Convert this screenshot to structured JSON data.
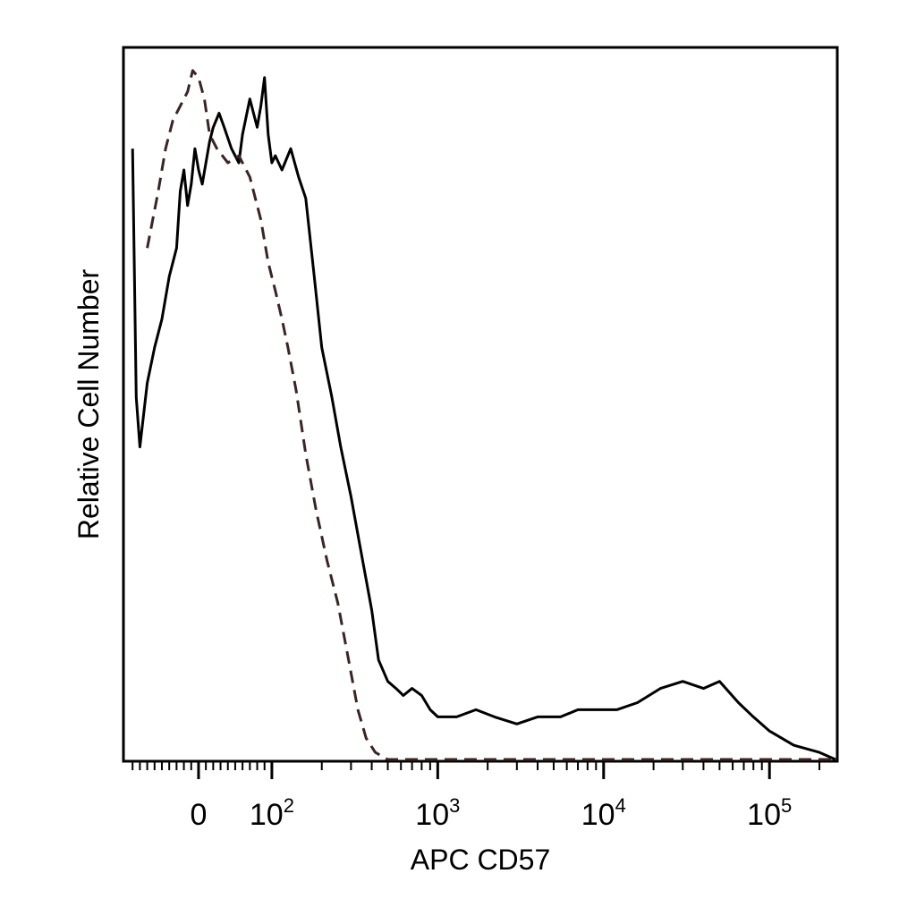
{
  "chart_data": {
    "type": "line",
    "title": "",
    "xlabel": "APC CD57",
    "ylabel": "Relative Cell Number",
    "x_scale": "biexponential (linear near 0, log above 10^2)",
    "xlim": [
      -100,
      250000
    ],
    "ylim": [
      0,
      100
    ],
    "x_ticks": [
      {
        "value": 0,
        "base": "0",
        "exp": ""
      },
      {
        "value": 100,
        "base": "10",
        "exp": "2"
      },
      {
        "value": 1000,
        "base": "10",
        "exp": "3"
      },
      {
        "value": 10000,
        "base": "10",
        "exp": "4"
      },
      {
        "value": 100000,
        "base": "10",
        "exp": "5"
      }
    ],
    "y_tick_labels": "none",
    "grid": false,
    "legend": "none",
    "series": [
      {
        "style": "solid",
        "color": "#000000",
        "points": [
          [
            -90,
            86
          ],
          [
            -85,
            51
          ],
          [
            -80,
            44
          ],
          [
            -70,
            53
          ],
          [
            -60,
            58
          ],
          [
            -50,
            62
          ],
          [
            -40,
            68
          ],
          [
            -30,
            72
          ],
          [
            -25,
            80
          ],
          [
            -20,
            83
          ],
          [
            -15,
            78
          ],
          [
            -10,
            81
          ],
          [
            -5,
            86
          ],
          [
            0,
            83
          ],
          [
            5,
            81
          ],
          [
            10,
            84
          ],
          [
            15,
            87
          ],
          [
            20,
            89
          ],
          [
            28,
            91
          ],
          [
            35,
            89
          ],
          [
            45,
            86
          ],
          [
            55,
            84
          ],
          [
            60,
            88
          ],
          [
            70,
            93
          ],
          [
            80,
            89
          ],
          [
            85,
            92
          ],
          [
            90,
            96
          ],
          [
            95,
            88
          ],
          [
            100,
            84
          ],
          [
            105,
            85
          ],
          [
            115,
            83
          ],
          [
            130,
            86
          ],
          [
            145,
            82
          ],
          [
            160,
            79
          ],
          [
            180,
            68
          ],
          [
            200,
            58
          ],
          [
            230,
            51
          ],
          [
            260,
            44
          ],
          [
            300,
            37
          ],
          [
            340,
            30
          ],
          [
            400,
            21
          ],
          [
            440,
            14
          ],
          [
            500,
            11
          ],
          [
            560,
            10
          ],
          [
            620,
            9
          ],
          [
            700,
            10
          ],
          [
            800,
            9
          ],
          [
            900,
            7
          ],
          [
            1000,
            6
          ],
          [
            1300,
            6
          ],
          [
            1700,
            7
          ],
          [
            2200,
            6
          ],
          [
            3000,
            5
          ],
          [
            4000,
            6
          ],
          [
            5500,
            6
          ],
          [
            7000,
            7
          ],
          [
            9000,
            7
          ],
          [
            12000,
            7
          ],
          [
            16000,
            8
          ],
          [
            22000,
            10
          ],
          [
            30000,
            11
          ],
          [
            40000,
            10
          ],
          [
            50000,
            11
          ],
          [
            65000,
            8
          ],
          [
            80000,
            6
          ],
          [
            100000,
            4
          ],
          [
            140000,
            2
          ],
          [
            200000,
            1
          ],
          [
            250000,
            0
          ]
        ]
      },
      {
        "style": "dashed",
        "color": "#3a2523",
        "points": [
          [
            -70,
            72
          ],
          [
            -55,
            80
          ],
          [
            -45,
            86
          ],
          [
            -35,
            90
          ],
          [
            -25,
            92
          ],
          [
            -15,
            94
          ],
          [
            -8,
            97
          ],
          [
            0,
            96
          ],
          [
            8,
            93
          ],
          [
            15,
            88
          ],
          [
            25,
            86
          ],
          [
            40,
            84
          ],
          [
            55,
            85
          ],
          [
            70,
            82
          ],
          [
            85,
            76
          ],
          [
            95,
            70
          ],
          [
            105,
            66
          ],
          [
            115,
            62
          ],
          [
            125,
            58
          ],
          [
            140,
            52
          ],
          [
            160,
            43
          ],
          [
            185,
            35
          ],
          [
            215,
            28
          ],
          [
            250,
            22
          ],
          [
            290,
            14
          ],
          [
            330,
            7
          ],
          [
            370,
            3
          ],
          [
            420,
            1
          ],
          [
            500,
            0
          ],
          [
            1000,
            0
          ],
          [
            10000,
            0
          ],
          [
            100000,
            0
          ],
          [
            250000,
            0
          ]
        ]
      }
    ]
  }
}
